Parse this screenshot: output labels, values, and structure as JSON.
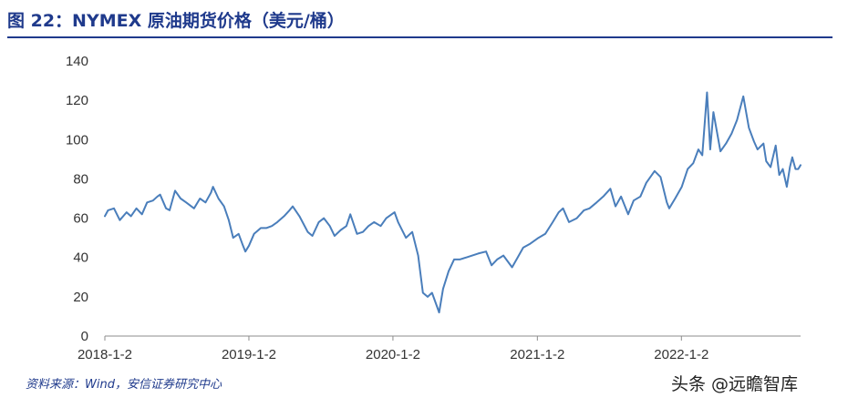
{
  "figure": {
    "title": "图 22：NYMEX 原油期货价格（美元/桶）",
    "source": "资料来源：Wind，安信证券研究中心",
    "watermark": "头条 @远瞻智库"
  },
  "colors": {
    "title": "#1f3a8c",
    "line": "#4a7ebb",
    "axis": "#8c8c8c"
  },
  "chart_data": {
    "type": "line",
    "title": "NYMEX 原油期货价格（美元/桶）",
    "xlabel": "",
    "ylabel": "",
    "ylim": [
      0,
      140
    ],
    "yticks": [
      0,
      20,
      40,
      60,
      80,
      100,
      120,
      140
    ],
    "xlim": [
      "2018-01-02",
      "2022-10-31"
    ],
    "xtick_labels": [
      "2018-1-2",
      "2019-1-2",
      "2020-1-2",
      "2021-1-2",
      "2022-1-2"
    ],
    "grid": false,
    "legend": "none",
    "series": [
      {
        "points": [
          [
            "2018-01-02",
            61
          ],
          [
            "2018-01-10",
            64
          ],
          [
            "2018-01-25",
            65
          ],
          [
            "2018-02-09",
            59
          ],
          [
            "2018-02-26",
            63
          ],
          [
            "2018-03-09",
            61
          ],
          [
            "2018-03-23",
            65
          ],
          [
            "2018-04-06",
            62
          ],
          [
            "2018-04-19",
            68
          ],
          [
            "2018-05-04",
            69
          ],
          [
            "2018-05-15",
            71
          ],
          [
            "2018-05-22",
            72
          ],
          [
            "2018-06-06",
            65
          ],
          [
            "2018-06-15",
            64
          ],
          [
            "2018-06-29",
            74
          ],
          [
            "2018-07-13",
            70
          ],
          [
            "2018-07-27",
            68
          ],
          [
            "2018-08-16",
            65
          ],
          [
            "2018-08-31",
            70
          ],
          [
            "2018-09-14",
            68
          ],
          [
            "2018-09-28",
            73
          ],
          [
            "2018-10-03",
            76
          ],
          [
            "2018-10-17",
            70
          ],
          [
            "2018-10-31",
            66
          ],
          [
            "2018-11-12",
            59
          ],
          [
            "2018-11-23",
            50
          ],
          [
            "2018-12-07",
            52
          ],
          [
            "2018-12-18",
            46
          ],
          [
            "2018-12-24",
            43
          ],
          [
            "2019-01-02",
            46
          ],
          [
            "2019-01-15",
            52
          ],
          [
            "2019-02-01",
            55
          ],
          [
            "2019-02-15",
            55
          ],
          [
            "2019-03-01",
            56
          ],
          [
            "2019-03-15",
            58
          ],
          [
            "2019-04-01",
            61
          ],
          [
            "2019-04-15",
            64
          ],
          [
            "2019-04-23",
            66
          ],
          [
            "2019-05-10",
            61
          ],
          [
            "2019-05-31",
            53
          ],
          [
            "2019-06-12",
            51
          ],
          [
            "2019-06-28",
            58
          ],
          [
            "2019-07-11",
            60
          ],
          [
            "2019-07-26",
            56
          ],
          [
            "2019-08-07",
            51
          ],
          [
            "2019-08-23",
            54
          ],
          [
            "2019-09-06",
            56
          ],
          [
            "2019-09-16",
            62
          ],
          [
            "2019-10-03",
            52
          ],
          [
            "2019-10-18",
            53
          ],
          [
            "2019-11-01",
            56
          ],
          [
            "2019-11-15",
            58
          ],
          [
            "2019-12-02",
            56
          ],
          [
            "2019-12-16",
            60
          ],
          [
            "2020-01-06",
            63
          ],
          [
            "2020-01-15",
            58
          ],
          [
            "2020-02-04",
            50
          ],
          [
            "2020-02-20",
            53
          ],
          [
            "2020-03-06",
            41
          ],
          [
            "2020-03-18",
            22
          ],
          [
            "2020-03-30",
            20
          ],
          [
            "2020-04-10",
            22
          ],
          [
            "2020-04-21",
            16
          ],
          [
            "2020-04-28",
            12
          ],
          [
            "2020-05-08",
            24
          ],
          [
            "2020-05-22",
            33
          ],
          [
            "2020-06-05",
            39
          ],
          [
            "2020-06-19",
            39
          ],
          [
            "2020-07-06",
            40
          ],
          [
            "2020-07-21",
            41
          ],
          [
            "2020-08-05",
            42
          ],
          [
            "2020-08-25",
            43
          ],
          [
            "2020-09-08",
            36
          ],
          [
            "2020-09-22",
            39
          ],
          [
            "2020-10-08",
            41
          ],
          [
            "2020-10-30",
            35
          ],
          [
            "2020-11-13",
            40
          ],
          [
            "2020-11-27",
            45
          ],
          [
            "2020-12-15",
            47
          ],
          [
            "2021-01-05",
            50
          ],
          [
            "2021-01-22",
            52
          ],
          [
            "2021-02-10",
            58
          ],
          [
            "2021-02-25",
            63
          ],
          [
            "2021-03-08",
            65
          ],
          [
            "2021-03-23",
            58
          ],
          [
            "2021-04-12",
            60
          ],
          [
            "2021-04-30",
            64
          ],
          [
            "2021-05-14",
            65
          ],
          [
            "2021-06-01",
            68
          ],
          [
            "2021-06-18",
            71
          ],
          [
            "2021-07-06",
            75
          ],
          [
            "2021-07-19",
            66
          ],
          [
            "2021-08-02",
            71
          ],
          [
            "2021-08-20",
            62
          ],
          [
            "2021-09-03",
            69
          ],
          [
            "2021-09-20",
            71
          ],
          [
            "2021-10-05",
            78
          ],
          [
            "2021-10-26",
            84
          ],
          [
            "2021-11-10",
            81
          ],
          [
            "2021-11-26",
            68
          ],
          [
            "2021-12-02",
            65
          ],
          [
            "2021-12-17",
            70
          ],
          [
            "2022-01-03",
            76
          ],
          [
            "2022-01-18",
            85
          ],
          [
            "2022-02-01",
            88
          ],
          [
            "2022-02-14",
            95
          ],
          [
            "2022-02-24",
            92
          ],
          [
            "2022-03-08",
            124
          ],
          [
            "2022-03-16",
            95
          ],
          [
            "2022-03-24",
            114
          ],
          [
            "2022-04-11",
            94
          ],
          [
            "2022-04-25",
            98
          ],
          [
            "2022-05-09",
            103
          ],
          [
            "2022-05-23",
            110
          ],
          [
            "2022-06-08",
            122
          ],
          [
            "2022-06-22",
            106
          ],
          [
            "2022-07-05",
            99
          ],
          [
            "2022-07-14",
            95
          ],
          [
            "2022-07-29",
            98
          ],
          [
            "2022-08-05",
            89
          ],
          [
            "2022-08-16",
            86
          ],
          [
            "2022-08-29",
            97
          ],
          [
            "2022-09-07",
            82
          ],
          [
            "2022-09-16",
            85
          ],
          [
            "2022-09-26",
            76
          ],
          [
            "2022-10-04",
            86
          ],
          [
            "2022-10-10",
            91
          ],
          [
            "2022-10-18",
            85
          ],
          [
            "2022-10-25",
            85
          ],
          [
            "2022-10-31",
            87
          ]
        ]
      }
    ]
  }
}
